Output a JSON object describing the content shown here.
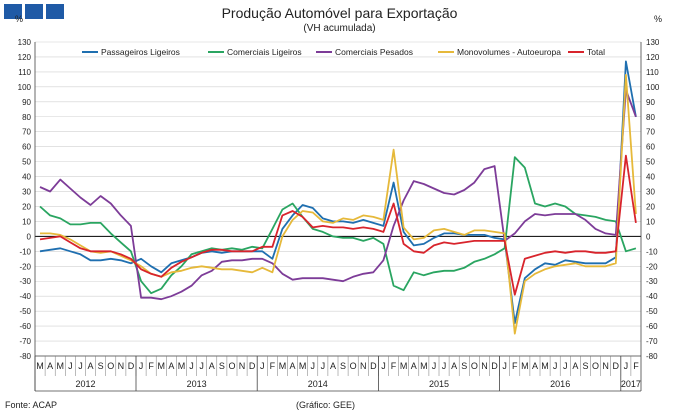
{
  "header": {
    "title": "Produção Automóvel para Exportação",
    "subtitle": "(VH acumulada)",
    "unit_left": "%",
    "unit_right": "%"
  },
  "footer": {
    "source": "Fonte: ACAP",
    "credit": "(Gráfico: GEE)"
  },
  "colors": {
    "logo": "#1f5aa6",
    "grid": "#d0d0d0",
    "zero_line": "#000000"
  },
  "chart_data": {
    "type": "line",
    "title": "Produção Automóvel para Exportação",
    "subtitle": "(VH acumulada)",
    "ylabel": "%",
    "ylim": [
      -80,
      130
    ],
    "yticks": [
      -80,
      -70,
      -60,
      -50,
      -40,
      -30,
      -20,
      -10,
      0,
      10,
      20,
      30,
      40,
      50,
      60,
      70,
      80,
      90,
      100,
      110,
      120,
      130
    ],
    "month_labels": [
      "M",
      "A",
      "M",
      "J",
      "J",
      "A",
      "S",
      "O",
      "N",
      "D",
      "J",
      "F",
      "M",
      "A",
      "M",
      "J",
      "J",
      "A",
      "S",
      "O",
      "N",
      "D",
      "J",
      "F",
      "M",
      "A",
      "M",
      "J",
      "J",
      "A",
      "S",
      "O",
      "N",
      "D",
      "J",
      "F",
      "M",
      "A",
      "M",
      "J",
      "J",
      "A",
      "S",
      "O",
      "N",
      "D",
      "J",
      "F",
      "M",
      "A",
      "M",
      "J",
      "J",
      "A",
      "S",
      "O",
      "N",
      "D",
      "J",
      "F"
    ],
    "years": [
      {
        "label": "2012",
        "start": 0,
        "end": 10
      },
      {
        "label": "2013",
        "start": 10,
        "end": 22
      },
      {
        "label": "2014",
        "start": 22,
        "end": 34
      },
      {
        "label": "2015",
        "start": 34,
        "end": 46
      },
      {
        "label": "2016",
        "start": 46,
        "end": 58
      },
      {
        "label": "2017",
        "start": 58,
        "end": 60
      }
    ],
    "series": [
      {
        "name": "Passageiros Ligeiros",
        "color": "#1f6fb0",
        "values": [
          -10,
          -9,
          -8,
          -10,
          -12,
          -16,
          -16,
          -15,
          -16,
          -18,
          -15,
          -20,
          -24,
          -18,
          -16,
          -14,
          -11,
          -10,
          -11,
          -10,
          -10,
          -10,
          -10,
          -15,
          5,
          14,
          21,
          19,
          12,
          10,
          10,
          9,
          11,
          9,
          7,
          36,
          3,
          -6,
          -5,
          -1,
          2,
          2,
          1,
          1,
          1,
          -1,
          -2,
          -58,
          -28,
          -22,
          -18,
          -19,
          -16,
          -17,
          -18,
          -18,
          -18,
          -14,
          117,
          80
        ]
      },
      {
        "name": "Comerciais Ligeiros",
        "color": "#2aa561",
        "values": [
          20,
          14,
          12,
          8,
          8,
          9,
          9,
          2,
          -4,
          -10,
          -30,
          -38,
          -35,
          -26,
          -20,
          -12,
          -10,
          -8,
          -9,
          -8,
          -9,
          -7,
          -8,
          5,
          18,
          22,
          13,
          5,
          3,
          0,
          -1,
          -1,
          -3,
          -1,
          -5,
          -33,
          -36,
          -24,
          -26,
          -24,
          -23,
          -23,
          -21,
          -17,
          -15,
          -12,
          -8,
          53,
          46,
          22,
          20,
          22,
          20,
          15,
          14,
          13,
          11,
          10,
          -10,
          -8
        ]
      },
      {
        "name": "Comerciais Pesados",
        "color": "#7d3c98",
        "values": [
          33,
          30,
          38,
          32,
          26,
          21,
          27,
          22,
          14,
          7,
          -41,
          -41,
          -42,
          -40,
          -37,
          -33,
          -26,
          -23,
          -17,
          -16,
          -16,
          -15,
          -15,
          -18,
          -25,
          -29,
          -28,
          -28,
          -28,
          -29,
          -30,
          -27,
          -25,
          -24,
          -16,
          7,
          24,
          37,
          35,
          32,
          29,
          28,
          31,
          36,
          45,
          47,
          -3,
          2,
          10,
          15,
          14,
          15,
          15,
          15,
          11,
          5,
          2,
          1,
          98,
          80
        ]
      },
      {
        "name": "Monovolumes - Autoeuropa",
        "color": "#e6b93a",
        "values": [
          2,
          2,
          1,
          -2,
          -6,
          -10,
          -11,
          -10,
          -13,
          -16,
          -20,
          -25,
          -27,
          -24,
          -23,
          -21,
          -20,
          -21,
          -22,
          -22,
          -23,
          -24,
          -21,
          -24,
          0,
          11,
          17,
          16,
          10,
          9,
          12,
          11,
          14,
          13,
          11,
          58,
          6,
          -2,
          -1,
          4,
          5,
          3,
          1,
          4,
          4,
          3,
          2,
          -65,
          -30,
          -25,
          -22,
          -20,
          -19,
          -18,
          -20,
          -20,
          -20,
          -18,
          108,
          15
        ]
      },
      {
        "name": "Total",
        "color": "#d8242c",
        "values": [
          -2,
          -1,
          0,
          -4,
          -8,
          -10,
          -10,
          -10,
          -12,
          -15,
          -22,
          -25,
          -27,
          -21,
          -17,
          -14,
          -11,
          -9,
          -9,
          -10,
          -10,
          -10,
          -7,
          -7,
          14,
          17,
          13,
          6,
          7,
          6,
          6,
          5,
          6,
          5,
          3,
          22,
          -5,
          -10,
          -11,
          -6,
          -4,
          -5,
          -4,
          -3,
          -3,
          -3,
          -3,
          -39,
          -15,
          -13,
          -11,
          -10,
          -11,
          -10,
          -10,
          -11,
          -11,
          -10,
          54,
          9
        ]
      }
    ]
  }
}
